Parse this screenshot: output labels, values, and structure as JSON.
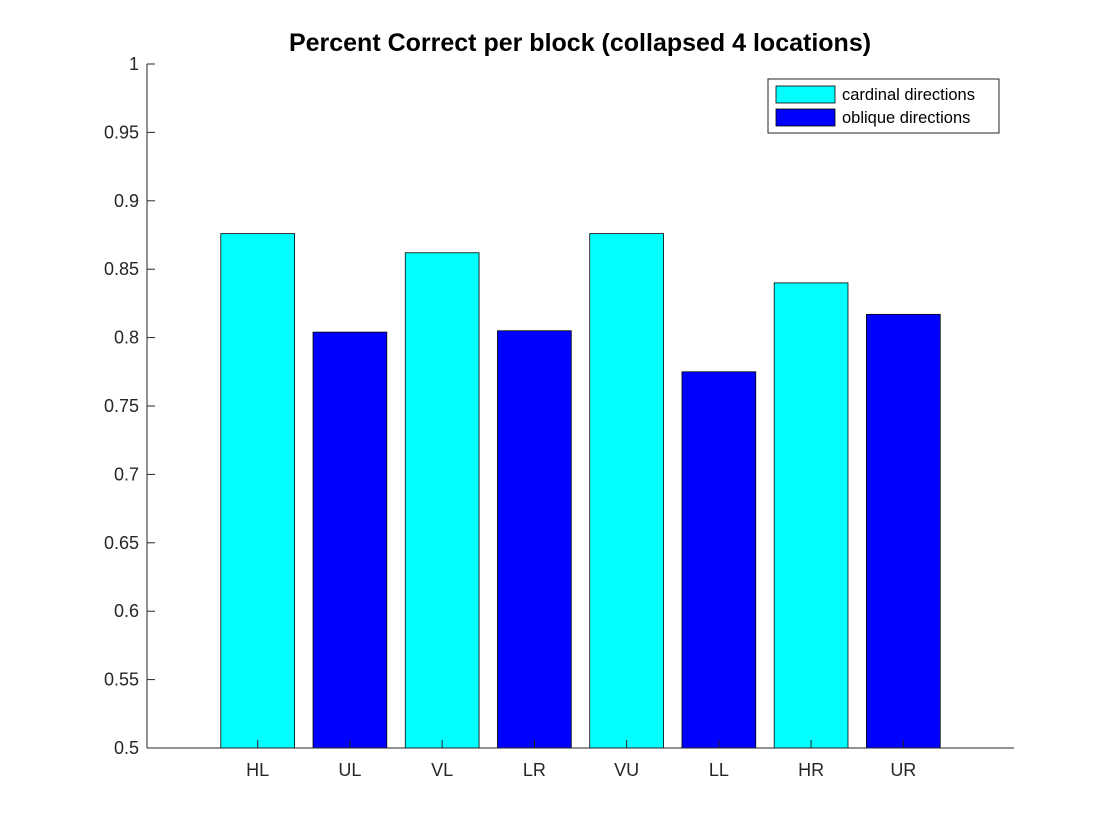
{
  "chart_data": {
    "type": "bar",
    "title": "Percent Correct per block (collapsed 4 locations)",
    "xlabel": "",
    "ylabel": "",
    "categories": [
      "HL",
      "UL",
      "VL",
      "LR",
      "VU",
      "LL",
      "HR",
      "UR"
    ],
    "values": [
      0.876,
      0.804,
      0.862,
      0.805,
      0.876,
      0.775,
      0.84,
      0.817
    ],
    "series_of_bar": [
      "cardinal directions",
      "oblique directions",
      "cardinal directions",
      "oblique directions",
      "cardinal directions",
      "oblique directions",
      "cardinal directions",
      "oblique directions"
    ],
    "series": [
      {
        "name": "cardinal directions",
        "color": "#00ffff"
      },
      {
        "name": "oblique directions",
        "color": "#0000ff"
      }
    ],
    "ylim": [
      0.5,
      1
    ],
    "yticks": [
      0.5,
      0.55,
      0.6,
      0.65,
      0.7,
      0.75,
      0.8,
      0.85,
      0.9,
      0.95,
      1
    ],
    "ytick_labels": [
      "0.5",
      "0.55",
      "0.6",
      "0.65",
      "0.7",
      "0.75",
      "0.8",
      "0.85",
      "0.9",
      "0.95",
      "1"
    ],
    "grid": false,
    "legend_position": "top-right"
  }
}
